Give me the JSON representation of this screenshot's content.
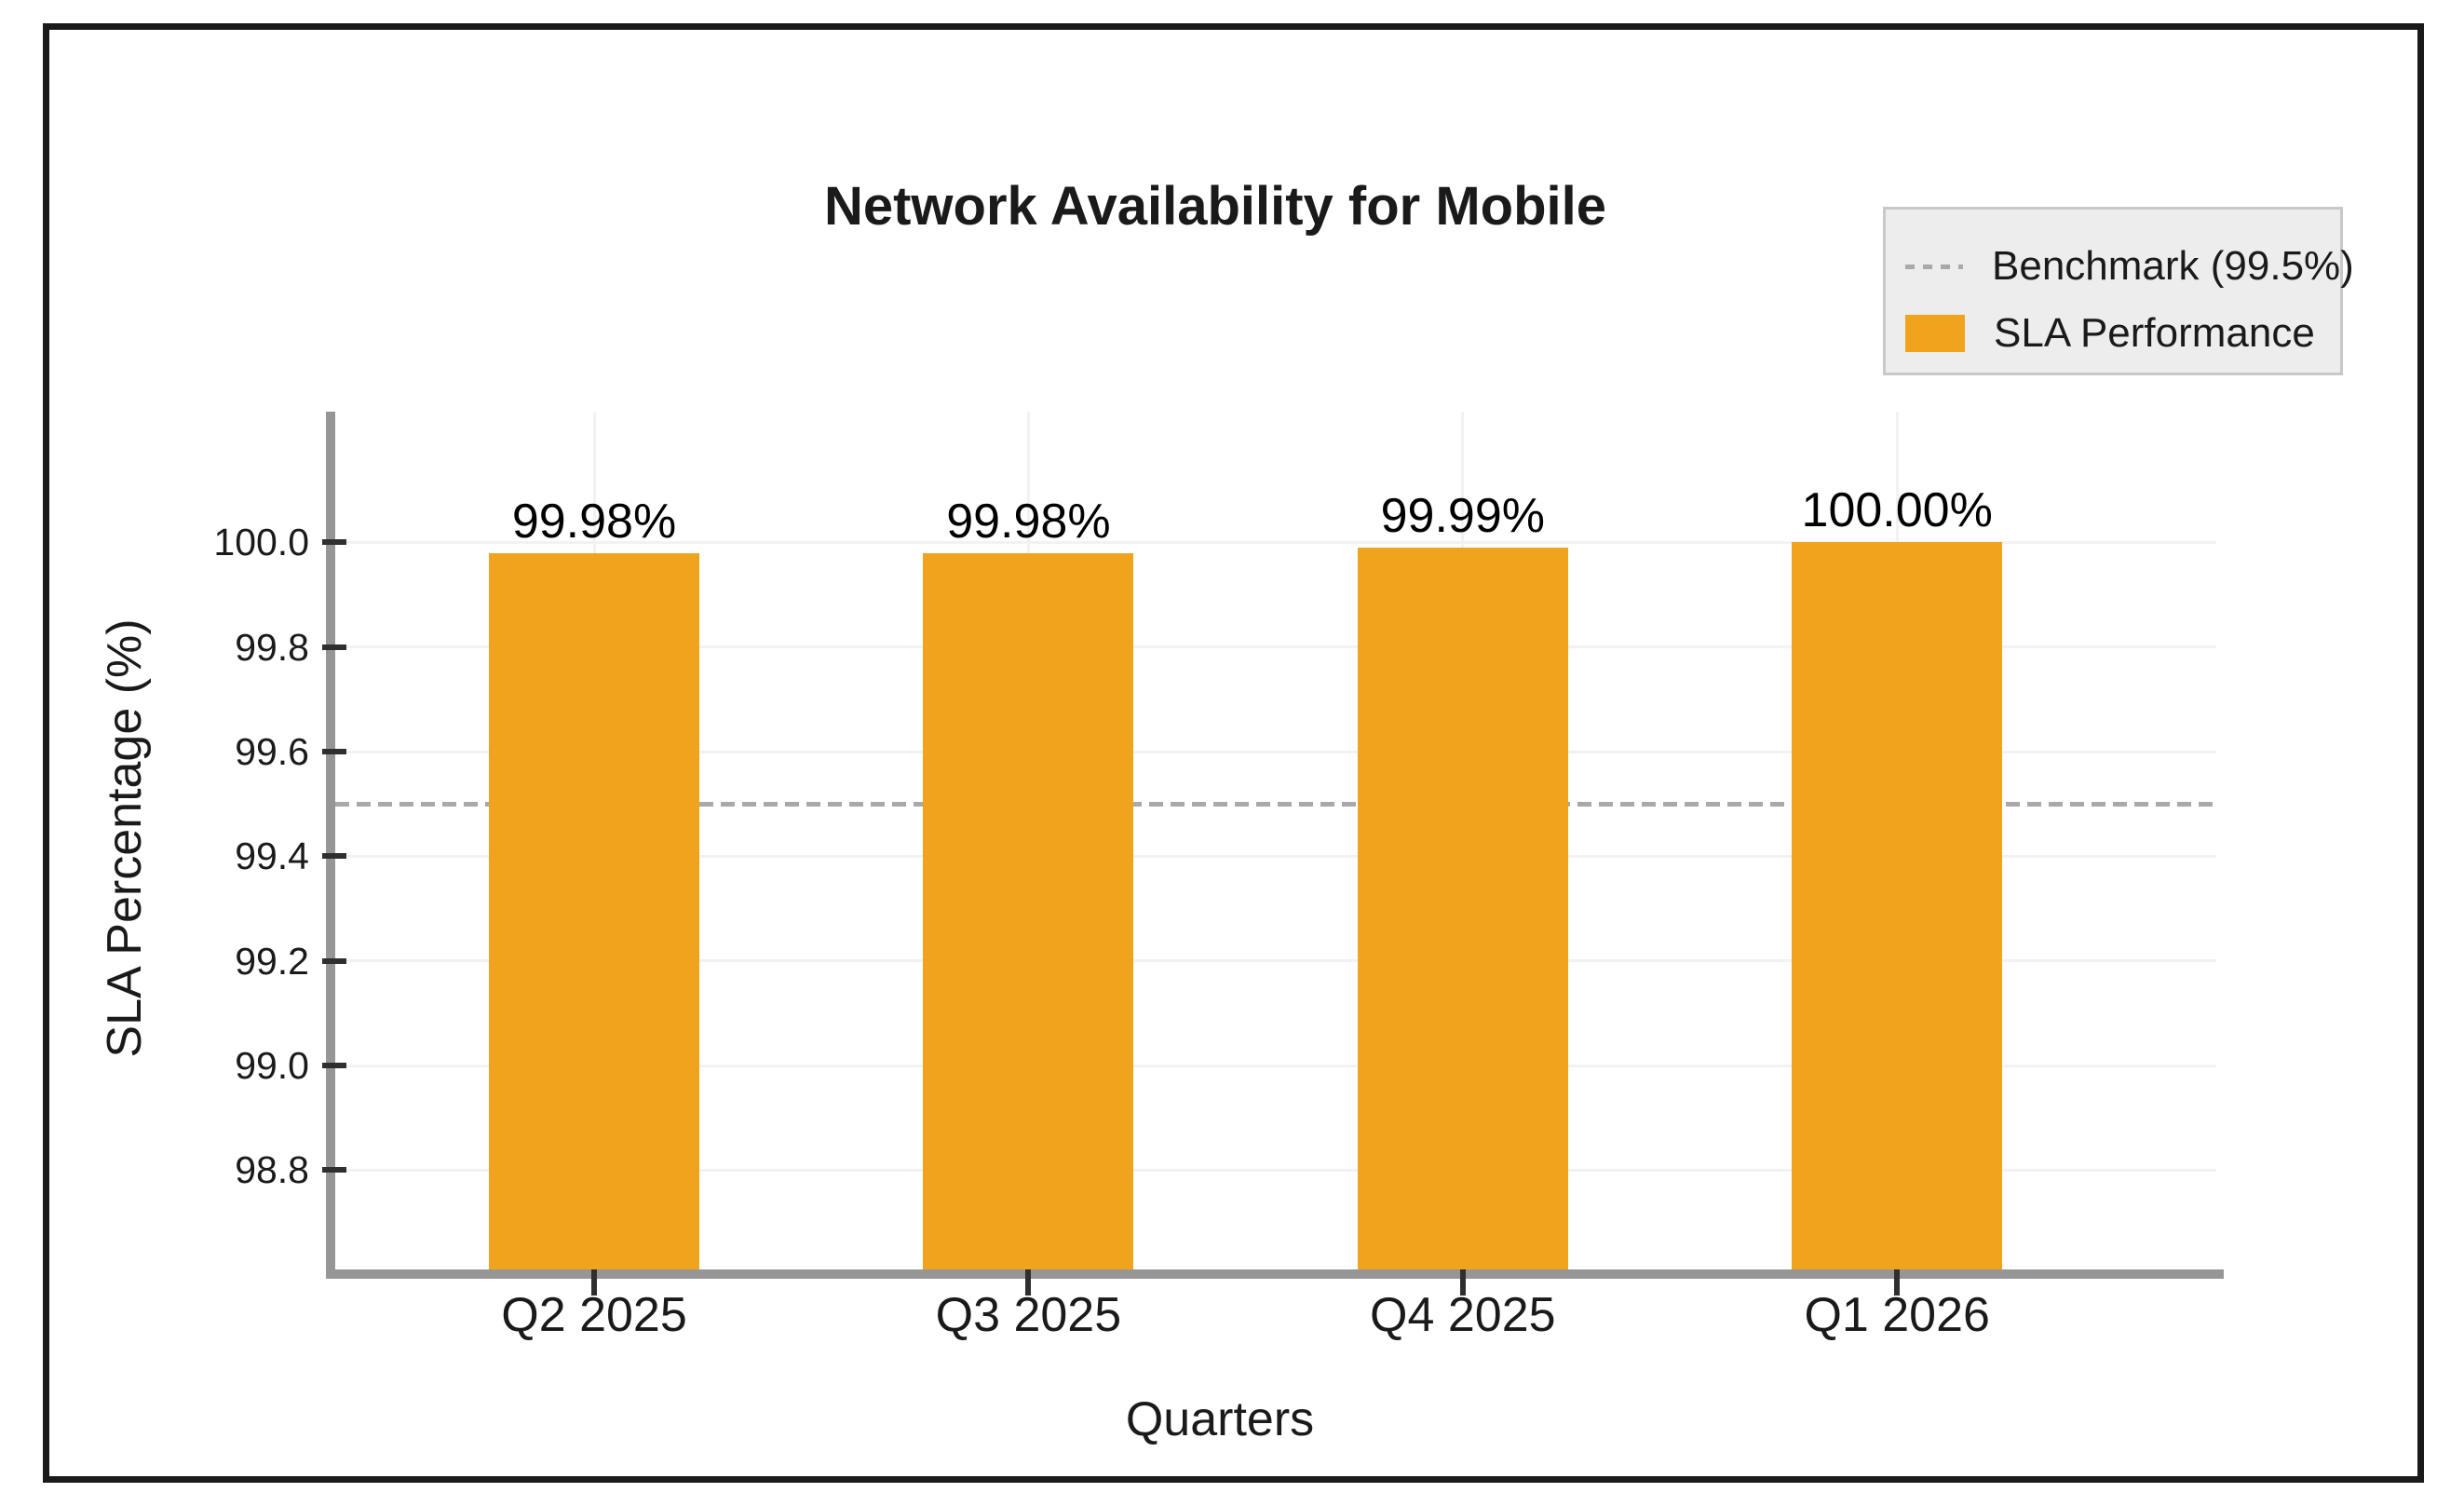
{
  "title": "Network Availability for Mobile",
  "legend": {
    "position": "top-right",
    "items": [
      {
        "label": "Benchmark (99.5%)",
        "marker": "dashed-line",
        "color": "#A9A9A9"
      },
      {
        "label": "SLA Performance",
        "marker": "square",
        "color": "#F0A41E"
      }
    ]
  },
  "chart_data": {
    "type": "bar",
    "title": "Network Availability for Mobile",
    "categories": [
      "Q2 2025",
      "Q3 2025",
      "Q4 2025",
      "Q1 2026"
    ],
    "series": [
      {
        "name": "SLA Performance",
        "values": [
          99.98,
          99.98,
          99.99,
          100.0
        ],
        "color": "#F0A41E"
      }
    ],
    "bar_value_labels": [
      "99.98%",
      "99.98%",
      "99.99%",
      "100.00%"
    ],
    "benchmark": {
      "name": "Benchmark (99.5%)",
      "value": 99.5,
      "style": "dashed",
      "color": "#A9A9A9"
    },
    "xlabel": "Quarters",
    "ylabel": "SLA Percentage (%)",
    "yticks": [
      100.0,
      99.8,
      99.6,
      99.4,
      99.2,
      99.0,
      98.8
    ],
    "ytick_labels": [
      "100.0",
      "99.8",
      "99.6",
      "99.4",
      "99.2",
      "99.0",
      "98.8"
    ],
    "ylim": [
      98.61,
      100.25
    ],
    "grid": true,
    "legend_position": "top-right"
  },
  "colors": {
    "bar": "#F0A41E",
    "axis": "#969696",
    "tick_mark": "#2f2f2f",
    "gridline": "#f2f2f2",
    "benchmark": "#A9A9A9",
    "text": "#1A1A1A",
    "legend_bg": "#EDEDED",
    "legend_border": "#C8C8C8",
    "frame_border": "#1A1A1A"
  }
}
